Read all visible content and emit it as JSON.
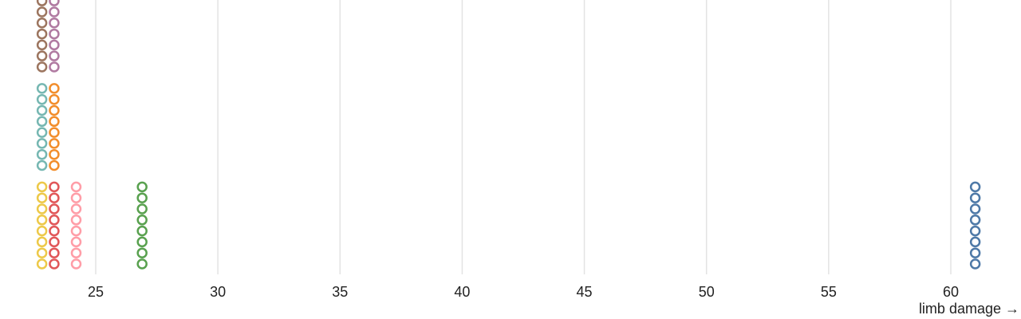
{
  "chart_data": {
    "type": "scatter",
    "title": "",
    "xlabel": "limb damage →",
    "ylabel": "",
    "xlim": [
      22.0,
      62.0
    ],
    "grid": true,
    "x_ticks": [
      25,
      30,
      35,
      40,
      45,
      50,
      55,
      60
    ],
    "groups": [
      {
        "color": "#9c755f",
        "x": 22.8,
        "count": 8
      },
      {
        "color": "#b07aa1",
        "x": 23.3,
        "count": 8
      },
      {
        "color": "#76b7b2",
        "x": 22.8,
        "count": 8
      },
      {
        "color": "#f28e2c",
        "x": 23.3,
        "count": 8
      },
      {
        "color": "#edc949",
        "x": 22.8,
        "count": 8
      },
      {
        "color": "#e15759",
        "x": 23.3,
        "count": 8
      },
      {
        "color": "#ff9da7",
        "x": 24.2,
        "count": 8
      },
      {
        "color": "#59a14f",
        "x": 26.9,
        "count": 8
      },
      {
        "color": "#4e79a7",
        "x": 61.0,
        "count": 8
      }
    ]
  }
}
